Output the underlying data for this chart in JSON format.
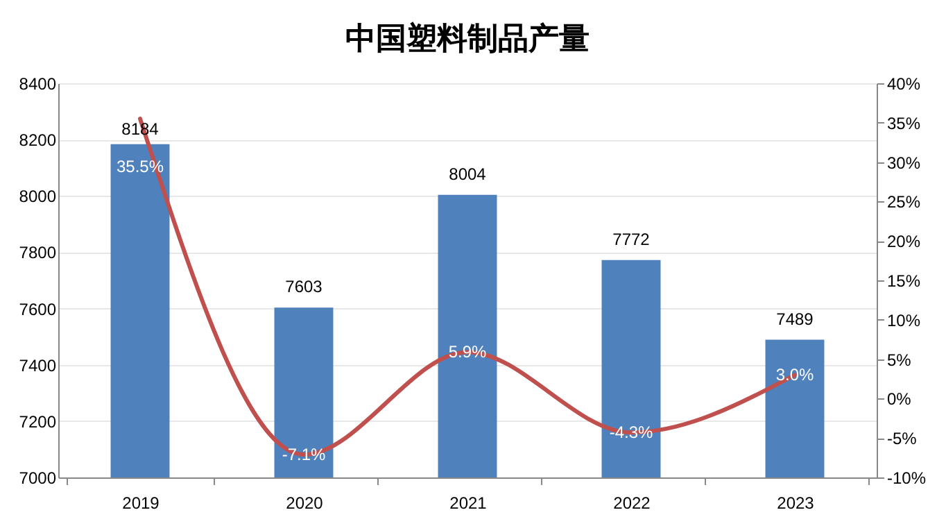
{
  "chart_data": {
    "type": "bar",
    "title": "中国塑料制品产量",
    "categories": [
      "2019",
      "2020",
      "2021",
      "2022",
      "2023"
    ],
    "series": [
      {
        "color": "#4f81bd",
        "values": [
          8184,
          7603,
          8004,
          7772,
          7489
        ],
        "data_labels": true
      },
      {
        "type": "line",
        "axis": "y2",
        "color": "#c0504d",
        "values": [
          35.5,
          -7.1,
          5.9,
          -4.3,
          3.0
        ],
        "value_labels": [
          "35.5%",
          "-7.1%",
          "5.9%",
          "-4.3%",
          "3.0%"
        ],
        "marker": "none"
      }
    ],
    "ylim": [
      7000,
      8400
    ],
    "yticks": [
      7000,
      7200,
      7400,
      7600,
      7800,
      8000,
      8200,
      8400
    ],
    "y2lim": [
      -10,
      40
    ],
    "y2ticks": [
      {
        "value": -10,
        "label": "-10%"
      },
      {
        "value": -5,
        "label": "-5%"
      },
      {
        "value": 0,
        "label": "0%"
      },
      {
        "value": 5,
        "label": "5%"
      },
      {
        "value": 10,
        "label": "10%"
      },
      {
        "value": 15,
        "label": "15%"
      },
      {
        "value": 20,
        "label": "20%"
      },
      {
        "value": 25,
        "label": "25%"
      },
      {
        "value": 30,
        "label": "30%"
      },
      {
        "value": 35,
        "label": "35%"
      },
      {
        "value": 40,
        "label": "40%"
      }
    ],
    "grid": "y"
  }
}
